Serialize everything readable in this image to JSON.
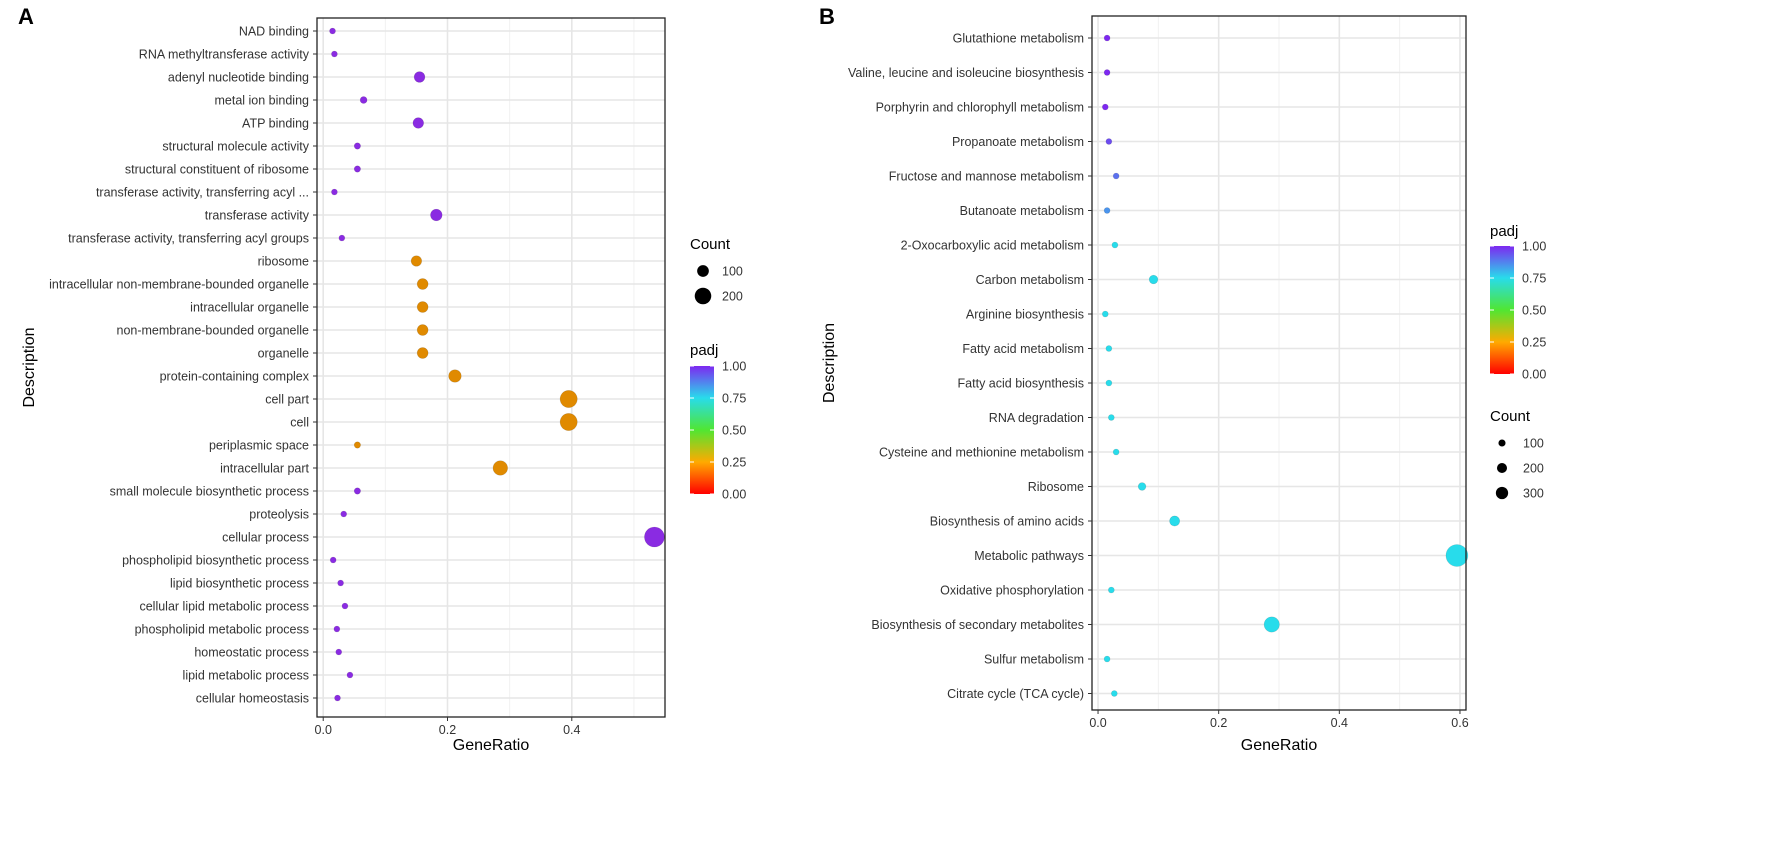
{
  "chart_data": [
    {
      "type": "scatter",
      "panel": "A",
      "xlabel": "GeneRatio",
      "ylabel": "Description",
      "xlim": [
        -0.01,
        0.55
      ],
      "xticks": [
        0.0,
        0.2,
        0.4
      ],
      "xtick_labels": [
        "0.0",
        "0.2",
        "0.4"
      ],
      "grid": true,
      "categories": [
        "NAD binding",
        "RNA methyltransferase activity",
        "adenyl nucleotide binding",
        "metal ion binding",
        "ATP binding",
        "structural molecule activity",
        "structural constituent of ribosome",
        "transferase activity, transferring acyl ...",
        "transferase activity",
        "transferase activity, transferring acyl groups",
        "ribosome",
        "intracellular non-membrane-bounded organelle",
        "intracellular organelle",
        "non-membrane-bounded organelle",
        "organelle",
        "protein-containing complex",
        "cell part",
        "cell",
        "periplasmic space",
        "intracellular part",
        "small molecule biosynthetic process",
        "proteolysis",
        "cellular process",
        "phospholipid biosynthetic process",
        "lipid biosynthetic process",
        "cellular lipid metabolic process",
        "phospholipid metabolic process",
        "homeostatic process",
        "lipid metabolic process",
        "cellular homeostasis"
      ],
      "gene_ratio": [
        0.015,
        0.018,
        0.155,
        0.065,
        0.153,
        0.055,
        0.055,
        0.018,
        0.182,
        0.03,
        0.15,
        0.16,
        0.16,
        0.16,
        0.16,
        0.212,
        0.395,
        0.395,
        0.055,
        0.285,
        0.055,
        0.033,
        0.533,
        0.016,
        0.028,
        0.035,
        0.022,
        0.025,
        0.043,
        0.023
      ],
      "count": [
        15,
        18,
        155,
        65,
        153,
        55,
        55,
        18,
        182,
        30,
        150,
        160,
        160,
        160,
        160,
        212,
        395,
        395,
        55,
        285,
        55,
        33,
        533,
        16,
        28,
        35,
        22,
        25,
        43,
        23
      ],
      "padj": [
        1.0,
        1.0,
        1.0,
        1.0,
        1.0,
        1.0,
        1.0,
        1.0,
        1.0,
        1.0,
        0.2,
        0.2,
        0.2,
        0.2,
        0.2,
        0.2,
        0.2,
        0.2,
        0.2,
        0.2,
        1.0,
        1.0,
        1.0,
        1.0,
        1.0,
        1.0,
        1.0,
        1.0,
        1.0,
        1.0
      ],
      "legend_count": {
        "title": "Count",
        "labels": [
          "100",
          "200"
        ],
        "values": [
          100,
          200
        ]
      },
      "legend_color": {
        "title": "padj",
        "labels": [
          "1.00",
          "0.75",
          "0.50",
          "0.25",
          "0.00"
        ],
        "values": [
          1.0,
          0.75,
          0.5,
          0.25,
          0.0
        ]
      }
    },
    {
      "type": "scatter",
      "panel": "B",
      "xlabel": "GeneRatio",
      "ylabel": "Description",
      "xlim": [
        -0.01,
        0.61
      ],
      "xticks": [
        0.0,
        0.2,
        0.4,
        0.6
      ],
      "xtick_labels": [
        "0.0",
        "0.2",
        "0.4",
        "0.6"
      ],
      "grid": true,
      "categories": [
        "Glutathione metabolism",
        "Valine, leucine and isoleucine biosynthesis",
        "Porphyrin and chlorophyll metabolism",
        "Propanoate metabolism",
        "Fructose and mannose metabolism",
        "Butanoate metabolism",
        "2-Oxocarboxylic acid metabolism",
        "Carbon metabolism",
        "Arginine biosynthesis",
        "Fatty acid metabolism",
        "Fatty acid biosynthesis",
        "RNA degradation",
        "Cysteine and methionine metabolism",
        "Ribosome",
        "Biosynthesis of amino acids",
        "Metabolic pathways",
        "Oxidative phosphorylation",
        "Biosynthesis of secondary metabolites",
        "Sulfur metabolism",
        "Citrate cycle (TCA cycle)"
      ],
      "gene_ratio": [
        0.015,
        0.015,
        0.012,
        0.018,
        0.03,
        0.015,
        0.028,
        0.092,
        0.012,
        0.018,
        0.018,
        0.022,
        0.03,
        0.073,
        0.127,
        0.595,
        0.022,
        0.288,
        0.015,
        0.027
      ],
      "count": [
        25,
        25,
        20,
        30,
        50,
        25,
        45,
        150,
        20,
        30,
        30,
        36,
        50,
        120,
        205,
        960,
        36,
        465,
        25,
        44
      ],
      "padj": [
        1.0,
        1.0,
        1.0,
        0.95,
        0.9,
        0.85,
        0.75,
        0.75,
        0.75,
        0.75,
        0.75,
        0.75,
        0.75,
        0.75,
        0.75,
        0.75,
        0.75,
        0.75,
        0.75,
        0.75
      ],
      "legend_count": {
        "title": "Count",
        "labels": [
          "100",
          "200",
          "300"
        ],
        "values": [
          100,
          200,
          300
        ]
      },
      "legend_color": {
        "title": "padj",
        "labels": [
          "1.00",
          "0.75",
          "0.50",
          "0.25",
          "0.00"
        ],
        "values": [
          1.0,
          0.75,
          0.5,
          0.25,
          0.0
        ]
      }
    }
  ]
}
